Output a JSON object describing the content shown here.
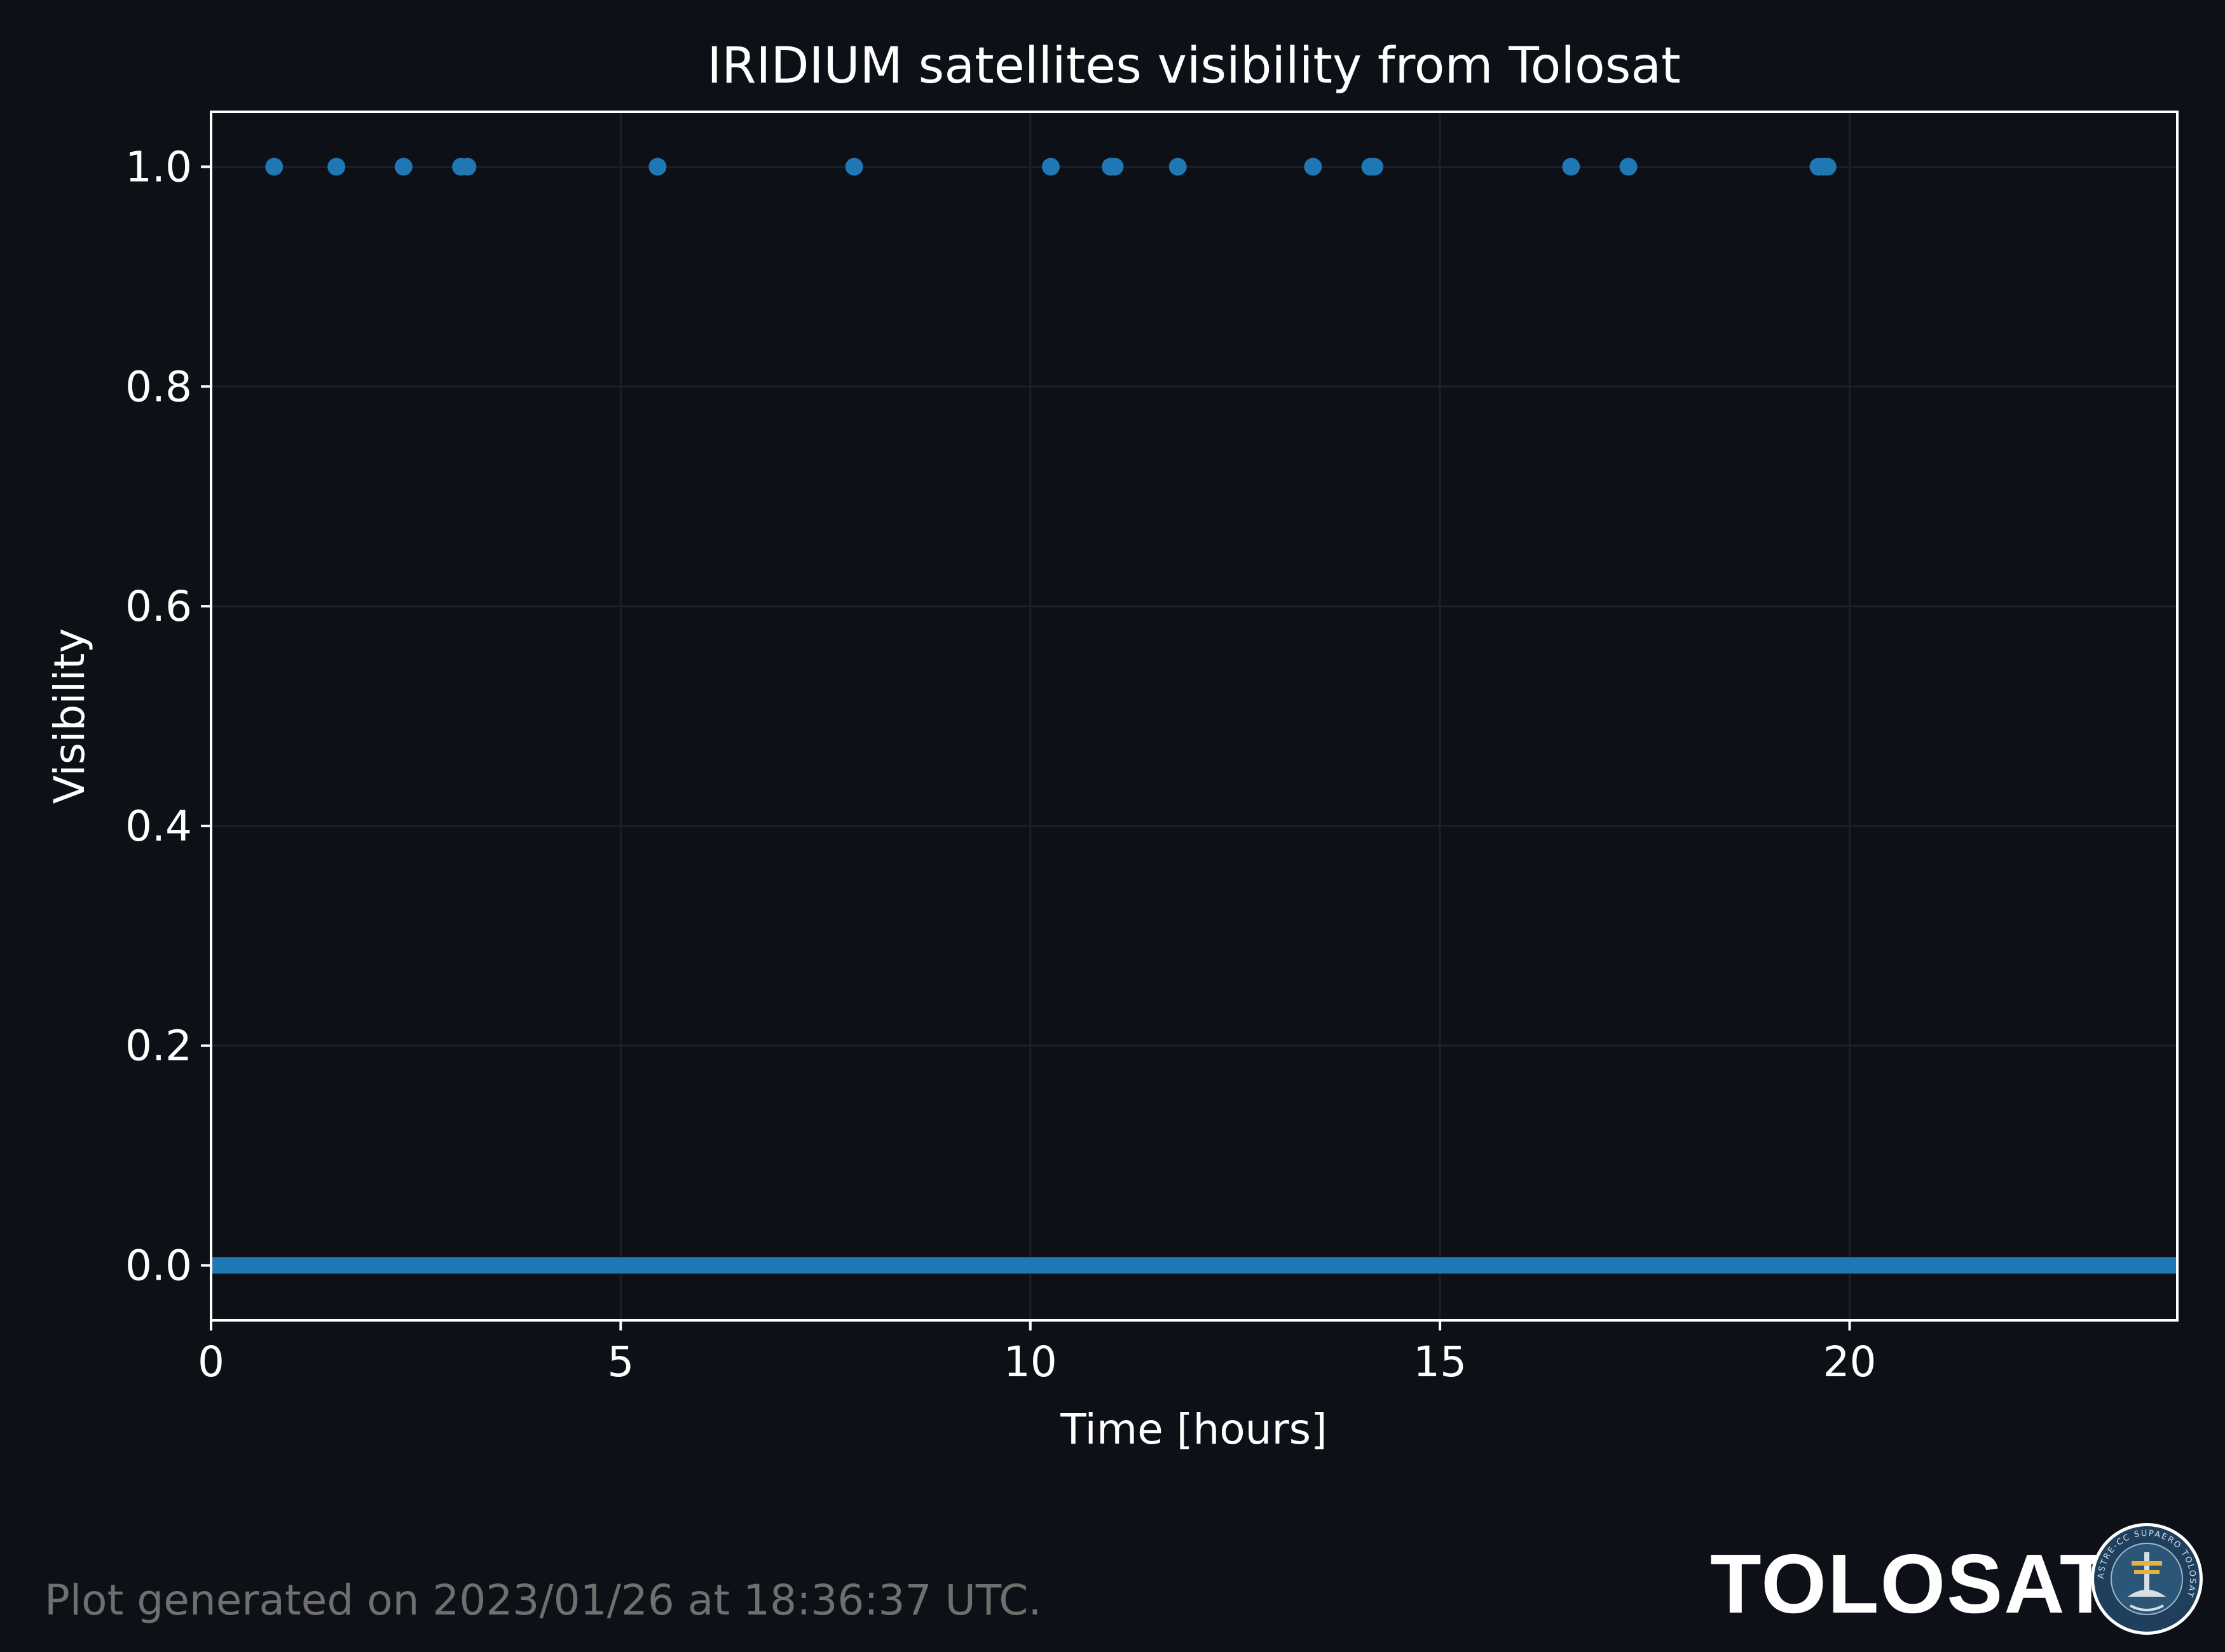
{
  "chart_data": {
    "type": "scatter",
    "title": "IRIDIUM satellites visibility from Tolosat",
    "xlabel": "Time [hours]",
    "ylabel": "Visibility",
    "xlim": [
      0,
      24
    ],
    "ylim": [
      -0.05,
      1.05
    ],
    "xticks": [
      0,
      5,
      10,
      15,
      20
    ],
    "xtick_labels": [
      "0",
      "5",
      "10",
      "15",
      "20"
    ],
    "yticks": [
      0.0,
      0.2,
      0.4,
      0.6,
      0.8,
      1.0
    ],
    "ytick_labels": [
      "0.0",
      "0.2",
      "0.4",
      "0.6",
      "0.8",
      "1.0"
    ],
    "grid": true,
    "legend": "none",
    "series": [
      {
        "color": "#1f77b4",
        "visible_points": [
          {
            "x": 0.77,
            "y": 1
          },
          {
            "x": 1.53,
            "y": 1
          },
          {
            "x": 2.35,
            "y": 1
          },
          {
            "x": 3.05,
            "y": 1
          },
          {
            "x": 3.13,
            "y": 1
          },
          {
            "x": 5.45,
            "y": 1
          },
          {
            "x": 7.85,
            "y": 1
          },
          {
            "x": 10.25,
            "y": 1
          },
          {
            "x": 10.98,
            "y": 1
          },
          {
            "x": 11.03,
            "y": 1
          },
          {
            "x": 11.8,
            "y": 1
          },
          {
            "x": 13.45,
            "y": 1
          },
          {
            "x": 14.15,
            "y": 1
          },
          {
            "x": 14.2,
            "y": 1
          },
          {
            "x": 16.6,
            "y": 1
          },
          {
            "x": 17.3,
            "y": 1
          },
          {
            "x": 19.62,
            "y": 1
          },
          {
            "x": 19.68,
            "y": 1
          },
          {
            "x": 19.73,
            "y": 1
          }
        ],
        "baseline": {
          "y": 0,
          "x_range": [
            0,
            24
          ]
        }
      }
    ]
  },
  "colors": {
    "background": "#0d1017",
    "axes": "#ffffff",
    "grid": "#1c2029",
    "series": "#1f77b4",
    "text": "#ffffff",
    "footer_text": "#6f6f6f"
  },
  "footer": {
    "note": "Plot generated on 2023/01/26 at 18:36:37 UTC."
  },
  "brand": {
    "name": "TOLOSAT",
    "logo_icon": "tolosat-seal-icon",
    "logo_text": "ASTRE-CC SUPAERO TOLOSAT"
  }
}
